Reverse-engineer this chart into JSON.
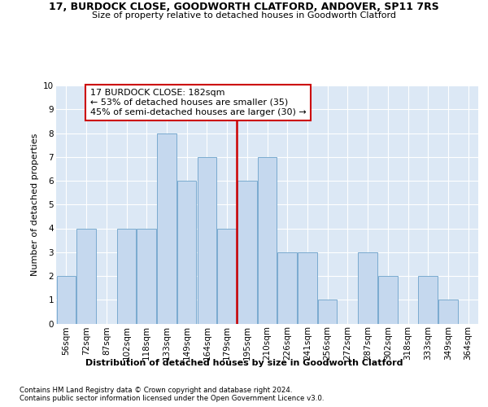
{
  "title1": "17, BURDOCK CLOSE, GOODWORTH CLATFORD, ANDOVER, SP11 7RS",
  "title2": "Size of property relative to detached houses in Goodworth Clatford",
  "xlabel": "Distribution of detached houses by size in Goodworth Clatford",
  "ylabel": "Number of detached properties",
  "footnote1": "Contains HM Land Registry data © Crown copyright and database right 2024.",
  "footnote2": "Contains public sector information licensed under the Open Government Licence v3.0.",
  "annotation_line1": "17 BURDOCK CLOSE: 182sqm",
  "annotation_line2": "← 53% of detached houses are smaller (35)",
  "annotation_line3": "45% of semi-detached houses are larger (30) →",
  "marker_label": "179sqm",
  "bar_color": "#c5d8ee",
  "bar_edge_color": "#7aaacf",
  "marker_line_color": "#cc0000",
  "annotation_box_edgecolor": "#cc0000",
  "plot_bg_color": "#dce8f5",
  "fig_bg_color": "#ffffff",
  "grid_color": "#ffffff",
  "categories": [
    "56sqm",
    "72sqm",
    "87sqm",
    "102sqm",
    "118sqm",
    "133sqm",
    "149sqm",
    "164sqm",
    "179sqm",
    "195sqm",
    "210sqm",
    "226sqm",
    "241sqm",
    "256sqm",
    "272sqm",
    "287sqm",
    "302sqm",
    "318sqm",
    "333sqm",
    "349sqm",
    "364sqm"
  ],
  "values": [
    2,
    4,
    0,
    4,
    4,
    8,
    6,
    7,
    4,
    6,
    7,
    3,
    3,
    1,
    0,
    3,
    2,
    0,
    2,
    1,
    0
  ],
  "ylim": [
    0,
    10
  ],
  "yticks": [
    0,
    1,
    2,
    3,
    4,
    5,
    6,
    7,
    8,
    9,
    10
  ],
  "title1_fontsize": 9,
  "title2_fontsize": 8,
  "ylabel_fontsize": 8,
  "xlabel_fontsize": 8,
  "tick_fontsize": 7.5,
  "annot_fontsize": 8
}
